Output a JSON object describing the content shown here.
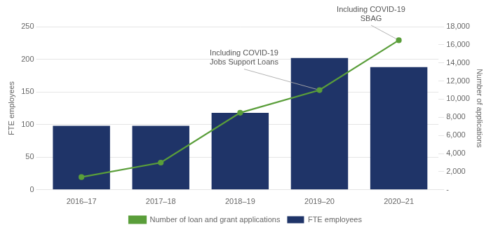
{
  "chart_data": {
    "type": "bar",
    "categories": [
      "2016–17",
      "2017–18",
      "2018–19",
      "2019–20",
      "2020–21"
    ],
    "series": [
      {
        "name": "FTE employees",
        "type": "bar",
        "color": "#1f3468",
        "values": [
          98,
          98,
          118,
          202,
          188
        ]
      },
      {
        "name": "Number of loan and grant applications",
        "type": "line",
        "color": "#5a9e3a",
        "marker": "circle",
        "axis": "y2",
        "values": [
          1400,
          3000,
          8500,
          11000,
          16500
        ]
      }
    ],
    "ylabel": "FTE employees",
    "y2label": "Number of applications",
    "ylim": [
      0,
      250
    ],
    "yticks": [
      0,
      50,
      100,
      150,
      200,
      250
    ],
    "y2lim": [
      0,
      18000
    ],
    "y2ticks": [
      {
        "value": 0,
        "label": "-"
      },
      {
        "value": 2000,
        "label": "2,000"
      },
      {
        "value": 4000,
        "label": "4,000"
      },
      {
        "value": 6000,
        "label": "6,000"
      },
      {
        "value": 8000,
        "label": "8,000"
      },
      {
        "value": 10000,
        "label": "10,000"
      },
      {
        "value": 12000,
        "label": "12,000"
      },
      {
        "value": 14000,
        "label": "14,000"
      },
      {
        "value": 16000,
        "label": "16,000"
      },
      {
        "value": 18000,
        "label": "18,000"
      }
    ],
    "grid": true,
    "legend": "bottom",
    "annotations": [
      {
        "text": "Including COVID-19\nJobs Support Loans",
        "x": "2019–20"
      },
      {
        "text": "Including COVID-19\nSBAG",
        "x": "2020–21"
      }
    ]
  }
}
